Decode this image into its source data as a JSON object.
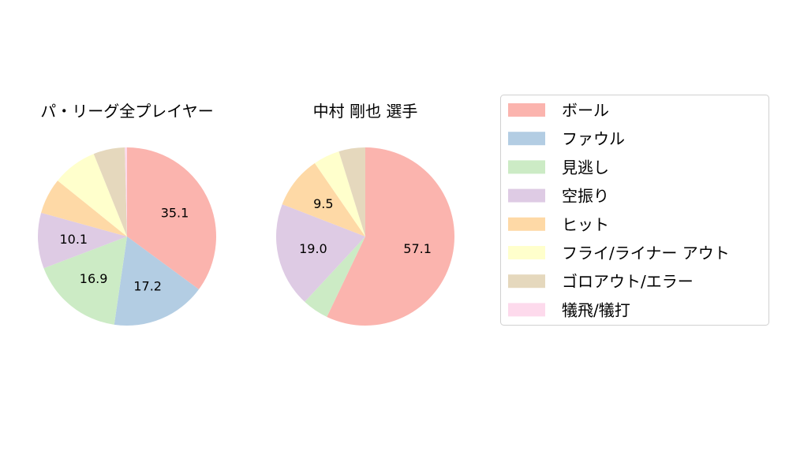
{
  "chart_data": [
    {
      "type": "pie",
      "title": "パ・リーグ全プレイヤー",
      "categories": [
        "ボール",
        "ファウル",
        "見逃し",
        "空振り",
        "ヒット",
        "フライ/ライナー アウト",
        "ゴロアウト/エラー",
        "犠飛/犠打"
      ],
      "values": [
        35.1,
        17.2,
        16.9,
        10.1,
        6.5,
        8.1,
        5.7,
        0.4
      ],
      "labels_shown": [
        "35.1",
        "17.2",
        "16.9",
        "10.1",
        "",
        "",
        "",
        ""
      ]
    },
    {
      "type": "pie",
      "title": "中村 剛也  選手",
      "categories": [
        "ボール",
        "ファウル",
        "見逃し",
        "空振り",
        "ヒット",
        "フライ/ライナー アウト",
        "ゴロアウト/エラー",
        "犠飛/犠打"
      ],
      "values": [
        57.1,
        0,
        4.8,
        19.0,
        9.5,
        4.8,
        4.8,
        0
      ],
      "labels_shown": [
        "57.1",
        "",
        "",
        "19.0",
        "9.5",
        "",
        "",
        ""
      ]
    }
  ],
  "legend": {
    "position": "right",
    "entries": [
      "ボール",
      "ファウル",
      "見逃し",
      "空振り",
      "ヒット",
      "フライ/ライナー アウト",
      "ゴロアウト/エラー",
      "犠飛/犠打"
    ]
  },
  "colors": [
    "#fbb4ae",
    "#b3cde3",
    "#ccebc5",
    "#decbe4",
    "#fed9a6",
    "#ffffcc",
    "#e5d8bd",
    "#fddaec"
  ]
}
